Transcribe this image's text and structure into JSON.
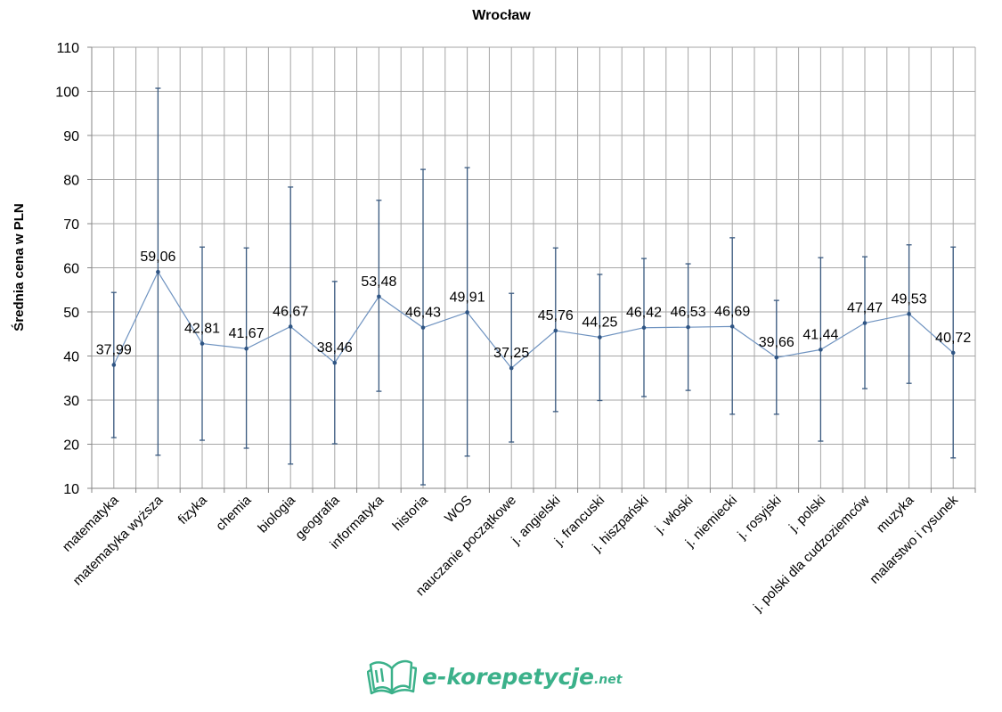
{
  "chart_data": {
    "type": "line",
    "title": "Wrocław",
    "xlabel": "",
    "ylabel": "Średnia cena w PLN",
    "ylim": [
      10,
      110
    ],
    "yticks": [
      10,
      20,
      30,
      40,
      50,
      60,
      70,
      80,
      90,
      100,
      110
    ],
    "grid": true,
    "legend": "none",
    "categories": [
      "matematyka",
      "matematyka wyższa",
      "fizyka",
      "chemia",
      "biologia",
      "geografia",
      "informatyka",
      "historia",
      "WOS",
      "nauczanie początkowe",
      "j. angielski",
      "j. francuski",
      "j. hiszpański",
      "j. włoski",
      "j. niemiecki",
      "j. rosyjski",
      "j. polski",
      "j. polski dla cudzoziemców",
      "muzyka",
      "malarstwo i rysunek"
    ],
    "series": [
      {
        "name": "Średnia cena",
        "color": "#6f93c0",
        "values": [
          37.99,
          59.06,
          42.81,
          41.67,
          46.67,
          38.46,
          53.48,
          46.43,
          49.91,
          37.25,
          45.76,
          44.25,
          46.42,
          46.53,
          46.69,
          39.66,
          41.44,
          47.47,
          49.53,
          40.72
        ],
        "labels": [
          "37,99",
          "59,06",
          "42,81",
          "41,67",
          "46,67",
          "38,46",
          "53,48",
          "46,43",
          "49,91",
          "37,25",
          "45,76",
          "44,25",
          "46,42",
          "46,53",
          "46,69",
          "39,66",
          "41,44",
          "47,47",
          "49,53",
          "40,72"
        ],
        "error_high": [
          54.4,
          100.7,
          64.7,
          64.5,
          78.3,
          56.9,
          75.3,
          82.3,
          82.7,
          54.2,
          64.5,
          58.5,
          62.1,
          60.9,
          66.8,
          52.6,
          62.3,
          62.5,
          65.2,
          64.7
        ],
        "error_low": [
          21.5,
          17.5,
          20.9,
          19.1,
          15.5,
          20.1,
          32.0,
          10.8,
          17.3,
          20.5,
          27.4,
          29.9,
          30.8,
          32.2,
          26.8,
          26.8,
          20.7,
          32.6,
          33.8,
          16.9
        ]
      }
    ]
  },
  "logo": {
    "main": "e-korepetycje",
    "suffix": ".net"
  }
}
